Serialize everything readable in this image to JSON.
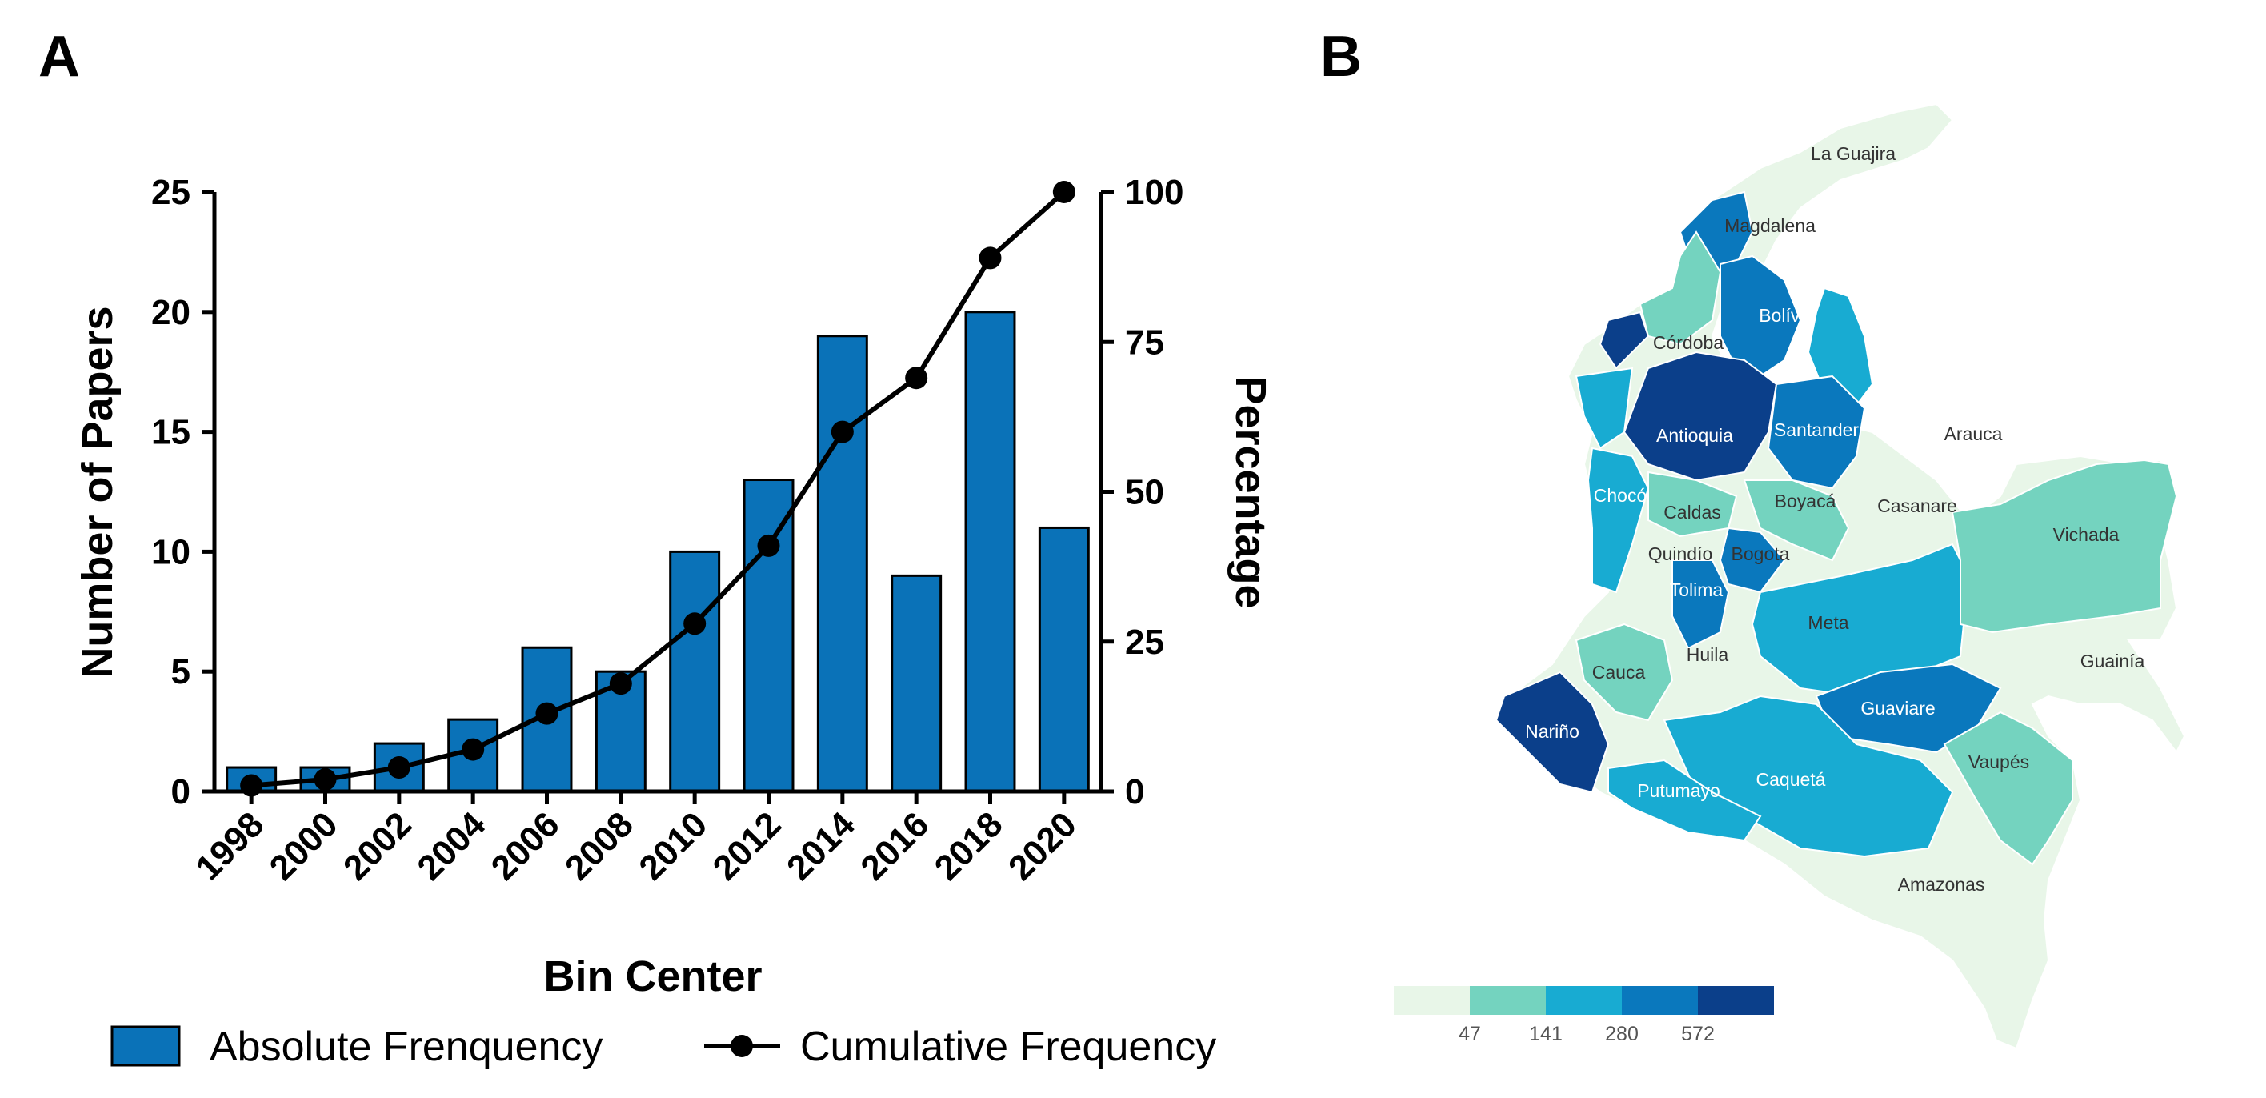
{
  "panels": {
    "a_label": "A",
    "b_label": "B"
  },
  "colors": {
    "bar": "#0a72b8",
    "line": "#000000",
    "map_scale": [
      "#e8f6e8",
      "#74d3bf",
      "#18abd2",
      "#0a78bd",
      "#0b3f8a"
    ]
  },
  "chart_data": [
    {
      "type": "bar",
      "title": "",
      "xlabel": "Bin Center",
      "ylabel": "Number of Papers",
      "y2label": "Percentage",
      "categories": [
        "1998",
        "2000",
        "2002",
        "2004",
        "2006",
        "2008",
        "2010",
        "2012",
        "2014",
        "2016",
        "2018",
        "2020"
      ],
      "series": [
        {
          "name": "Absolute Frenquency",
          "kind": "bar",
          "axis": "left",
          "values": [
            1,
            1,
            2,
            3,
            6,
            5,
            10,
            13,
            19,
            9,
            20,
            11
          ]
        },
        {
          "name": "Cumulative Frequency",
          "kind": "line",
          "axis": "right",
          "values": [
            1,
            2,
            4,
            7,
            13,
            18,
            28,
            41,
            60,
            69,
            89,
            100
          ]
        }
      ],
      "ylim": [
        0,
        25
      ],
      "y2lim": [
        0,
        100
      ],
      "yticks": [
        "0",
        "5",
        "10",
        "15",
        "20",
        "25"
      ],
      "y2ticks": [
        "0",
        "25",
        "50",
        "75",
        "100"
      ],
      "legend": "bottom",
      "grid": false
    },
    {
      "type": "heatmap",
      "map": "Colombia departments",
      "scale_breaks": [
        "47",
        "141",
        "280",
        "572"
      ],
      "regions": [
        {
          "name": "La Guajira",
          "level": 0
        },
        {
          "name": "Magdalena",
          "level": 3
        },
        {
          "name": "Bolívar",
          "level": 3
        },
        {
          "name": "Córdoba",
          "level": 1
        },
        {
          "name": "Antioquia",
          "level": 4
        },
        {
          "name": "Santander",
          "level": 3
        },
        {
          "name": "Arauca",
          "level": 0
        },
        {
          "name": "Chocó",
          "level": 2
        },
        {
          "name": "Caldas",
          "level": 1
        },
        {
          "name": "Boyacá",
          "level": 1
        },
        {
          "name": "Casanare",
          "level": 0
        },
        {
          "name": "Vichada",
          "level": 1
        },
        {
          "name": "Quindío",
          "level": 0
        },
        {
          "name": "Bogota",
          "level": 3
        },
        {
          "name": "Tolima",
          "level": 3
        },
        {
          "name": "Meta",
          "level": 2
        },
        {
          "name": "Cauca",
          "level": 1
        },
        {
          "name": "Huila",
          "level": 0
        },
        {
          "name": "Guainía",
          "level": 0
        },
        {
          "name": "Nariño",
          "level": 4
        },
        {
          "name": "Guaviare",
          "level": 3
        },
        {
          "name": "Vaupés",
          "level": 1
        },
        {
          "name": "Putumayo",
          "level": 2
        },
        {
          "name": "Caquetá",
          "level": 2
        },
        {
          "name": "Amazonas",
          "level": 0
        }
      ]
    }
  ]
}
